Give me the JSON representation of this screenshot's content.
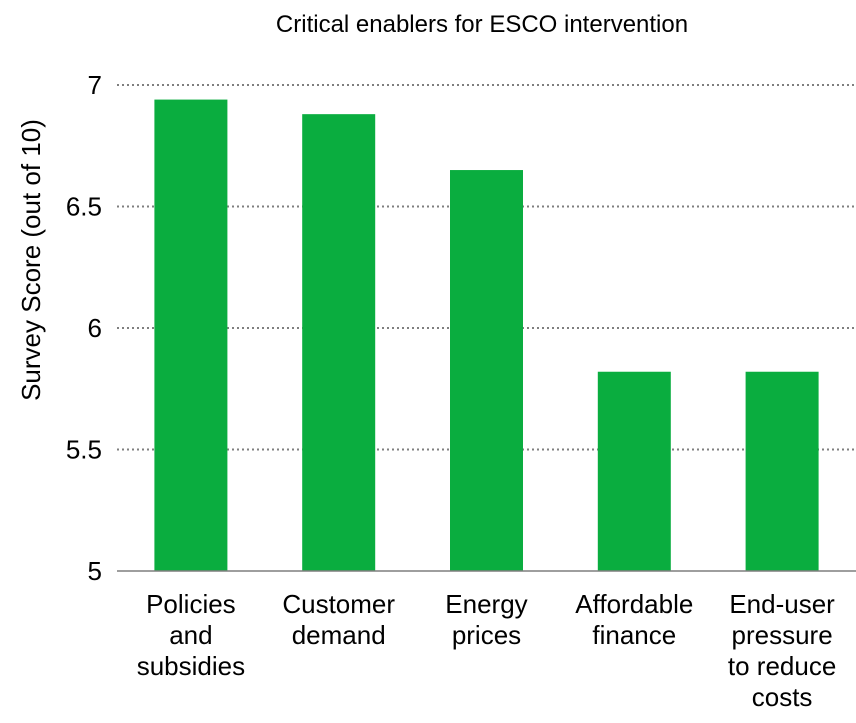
{
  "chart_data": {
    "type": "bar",
    "title": "Critical enablers for ESCO intervention",
    "xlabel": "",
    "ylabel": "Survey Score  (out of 10)",
    "categories": [
      [
        "Policies",
        "and",
        "subsidies"
      ],
      [
        "Customer",
        "demand"
      ],
      [
        "Energy",
        "prices"
      ],
      [
        "Affordable",
        "finance"
      ],
      [
        "End-user",
        "pressure",
        "to reduce",
        "costs"
      ]
    ],
    "values": [
      6.94,
      6.88,
      6.65,
      5.82,
      5.82
    ],
    "ylim": [
      5,
      7
    ],
    "yticks": [
      "5",
      "5.5",
      "6",
      "6.5",
      "7"
    ],
    "grid": true,
    "bar_color": "#0aad3f",
    "grid_color": "#7f7f7f"
  }
}
